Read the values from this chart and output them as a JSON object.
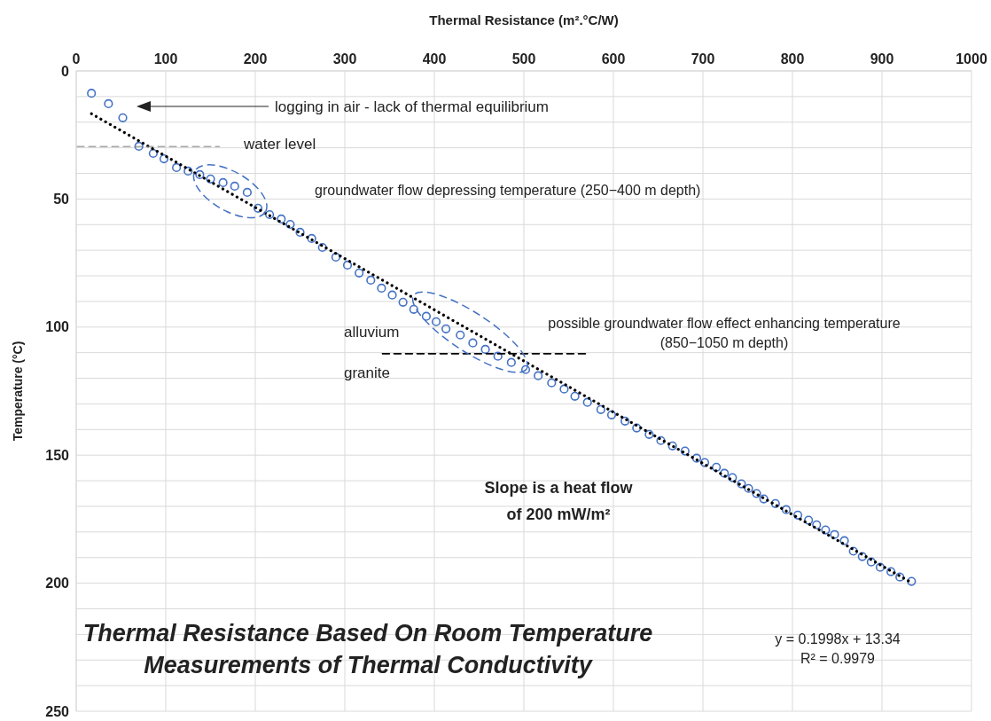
{
  "chart_data": {
    "type": "scatter",
    "title": "Thermal Resistance Based On Room Temperature\nMeasurements of Thermal Conductivity",
    "xlabel": "Thermal Resistance (m².°C/W)",
    "ylabel": "Temperature (°C)",
    "xlim": [
      0,
      1000
    ],
    "xticks": [
      0,
      100,
      200,
      300,
      400,
      500,
      600,
      700,
      800,
      900,
      1000
    ],
    "ylim": [
      250,
      0
    ],
    "yticks": [
      0,
      {
        "value": 10,
        "label": null
      },
      {
        "value": 20,
        "label": null
      },
      {
        "value": 30,
        "label": null
      },
      {
        "value": 40,
        "label": null
      },
      50,
      {
        "value": 60,
        "label": null
      },
      {
        "value": 70,
        "label": null
      },
      {
        "value": 80,
        "label": null
      },
      {
        "value": 90,
        "label": null
      },
      100,
      {
        "value": 110,
        "label": null
      },
      {
        "value": 120,
        "label": null
      },
      {
        "value": 130,
        "label": null
      },
      {
        "value": 140,
        "label": null
      },
      150,
      {
        "value": 160,
        "label": null
      },
      {
        "value": 170,
        "label": null
      },
      {
        "value": 180,
        "label": null
      },
      {
        "value": 190,
        "label": null
      },
      200,
      {
        "value": 210,
        "label": null
      },
      {
        "value": 220,
        "label": null
      },
      {
        "value": 230,
        "label": null
      },
      {
        "value": 240,
        "label": null
      },
      250
    ],
    "grid": true,
    "series": [
      {
        "marker": "circle",
        "color": "#4472c4",
        "x": [
          17,
          36,
          52,
          70,
          86,
          98,
          112,
          125,
          138,
          150,
          164,
          177,
          191,
          203,
          216,
          229,
          239,
          250,
          263,
          275,
          290,
          303,
          316,
          329,
          341,
          353,
          365,
          377,
          391,
          402,
          413,
          429,
          443,
          457,
          471,
          486,
          502,
          516,
          531,
          545,
          557,
          571,
          586,
          598,
          613,
          626,
          640,
          653,
          666,
          680,
          693,
          702,
          715,
          724,
          733,
          743,
          751,
          760,
          768,
          781,
          793,
          806,
          818,
          827,
          837,
          847,
          858,
          868,
          878,
          888,
          898,
          910,
          920,
          933
        ],
        "values": [
          8.7,
          12.8,
          18.3,
          29.4,
          32.2,
          34.3,
          37.7,
          39.1,
          40.5,
          42.2,
          43.6,
          45.0,
          47.4,
          53.6,
          56.1,
          57.8,
          59.9,
          63.0,
          65.4,
          68.9,
          72.7,
          75.8,
          78.9,
          81.7,
          84.8,
          87.5,
          90.3,
          93.1,
          95.8,
          97.9,
          100.7,
          103.1,
          106.2,
          108.7,
          111.4,
          113.8,
          116.6,
          119.0,
          121.8,
          124.2,
          127.0,
          129.4,
          132.2,
          134.3,
          136.7,
          139.4,
          141.9,
          144.3,
          146.4,
          148.4,
          151.2,
          152.9,
          154.7,
          157.1,
          158.8,
          161.2,
          163.0,
          165.0,
          167.1,
          168.9,
          171.3,
          173.4,
          175.4,
          177.2,
          179.2,
          181.0,
          183.4,
          187.5,
          189.6,
          191.7,
          193.8,
          195.5,
          197.6,
          199.3
        ]
      },
      {
        "type": "line",
        "marker": "none",
        "color": "#000000",
        "line_style": "dotted",
        "x": [
          17,
          933
        ],
        "values": [
          16.7,
          199.8
        ]
      },
      {
        "type": "line",
        "marker": "none",
        "color": "#7f7f7f",
        "line_style": "dashed",
        "x": [
          1,
          160
        ],
        "values": [
          29.5,
          29.5
        ]
      },
      {
        "type": "line",
        "marker": "none",
        "color": "#000000",
        "line_style": "dashed",
        "x": [
          342,
          573
        ],
        "values": [
          110.4,
          110.4
        ]
      }
    ],
    "annotations": [
      "logging in air - lack of thermal equilibrium",
      "water level",
      "groundwater flow depressing temperature (250−400 m depth)",
      "alluvium",
      "granite",
      "possible groundwater flow effect enhancing temperature\n(850−1050 m depth)",
      "Slope is a heat flow\nof 200 mW/m²",
      "y = 0.1998x + 13.34\nR² = 0.9979"
    ]
  }
}
